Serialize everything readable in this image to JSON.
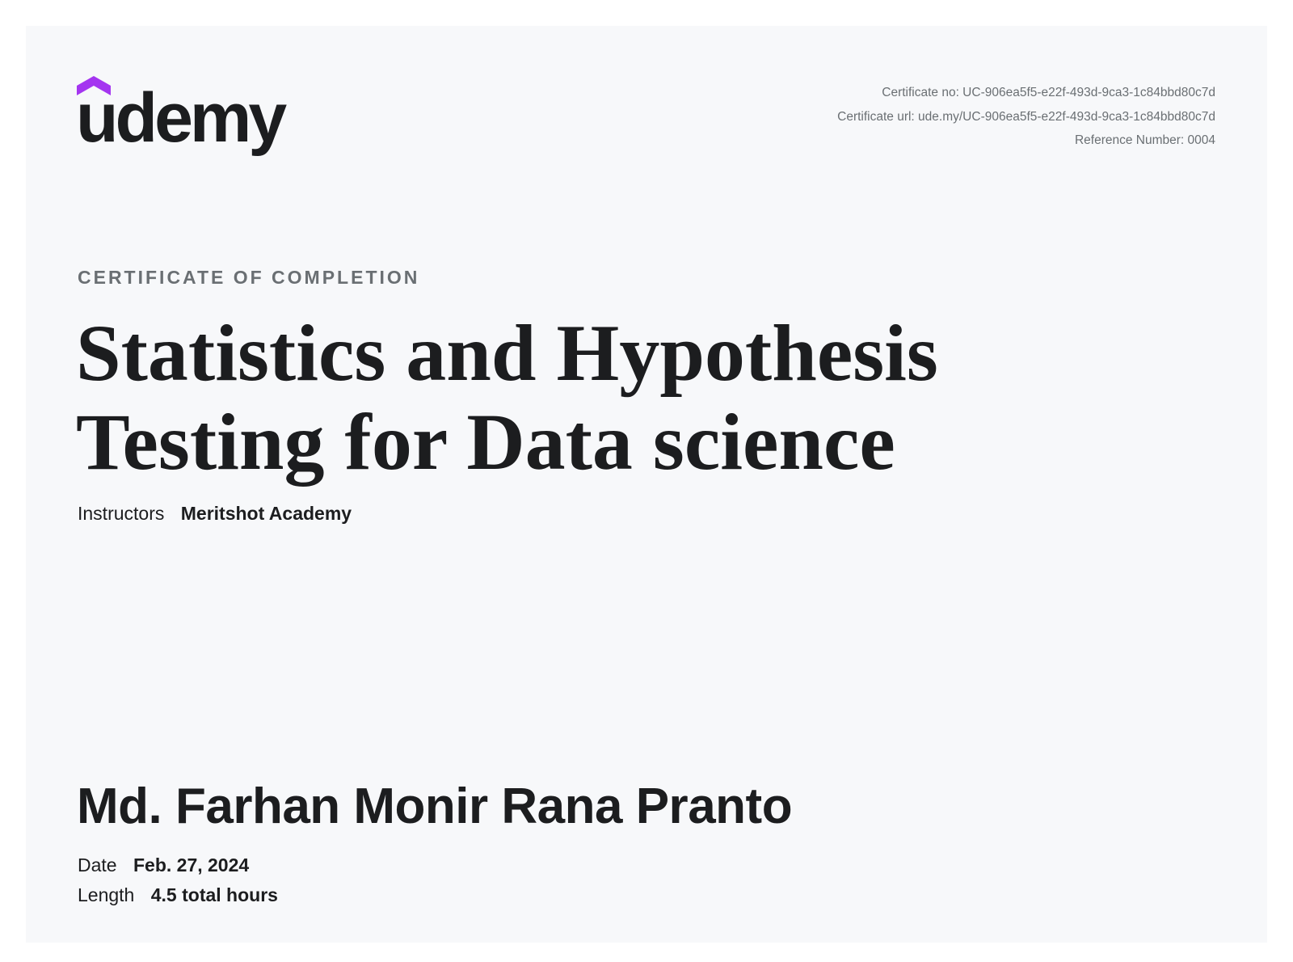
{
  "brand": {
    "logo_text": "udemy",
    "logo_color": "#1c1d1f",
    "accent_color": "#a435f0"
  },
  "meta": {
    "certificate_no": "Certificate no: UC-906ea5f5-e22f-493d-9ca3-1c84bbd80c7d",
    "certificate_url": "Certificate url: ude.my/UC-906ea5f5-e22f-493d-9ca3-1c84bbd80c7d",
    "reference_number": "Reference Number: 0004"
  },
  "certificate": {
    "kicker": "CERTIFICATE OF COMPLETION",
    "course_title": "Statistics and Hypothesis Testing for Data science",
    "instructors_label": "Instructors",
    "instructors_value": "Meritshot Academy",
    "recipient_name": "Md. Farhan Monir Rana Pranto",
    "date_label": "Date",
    "date_value": "Feb. 27, 2024",
    "length_label": "Length",
    "length_value": "4.5 total hours"
  }
}
